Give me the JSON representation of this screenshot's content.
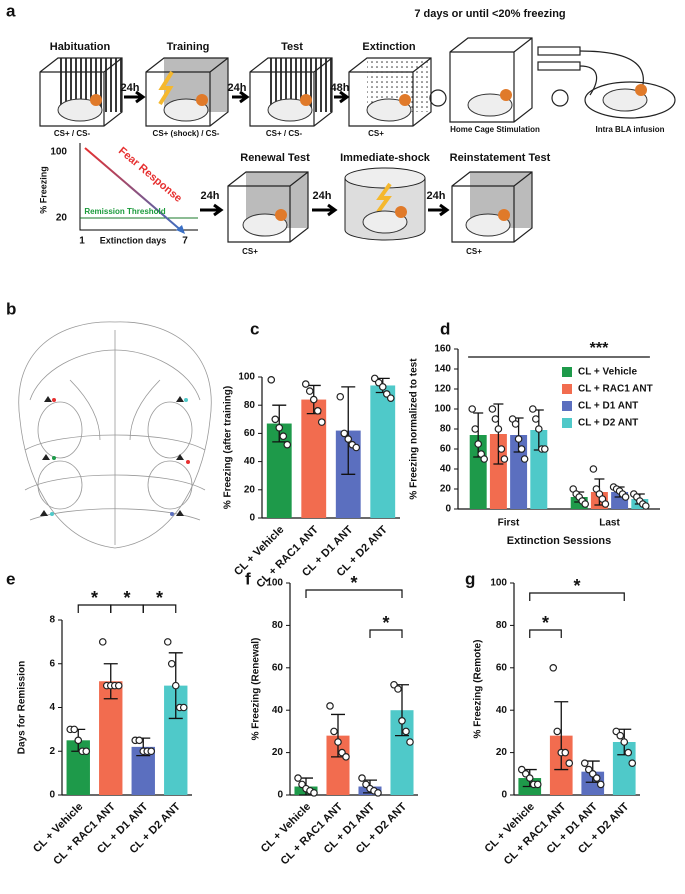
{
  "panel_a": {
    "label": "a",
    "stages": [
      "Habituation",
      "Training",
      "Test",
      "Extinction"
    ],
    "stage_notes": [
      "CS+ / CS-",
      "CS+ (shock) / CS-",
      "CS+ / CS-",
      "CS+"
    ],
    "delays": [
      "24h",
      "24h",
      "48h"
    ],
    "repeat_note": "7 days or until <20% freezing",
    "loop": [
      "Home Cage Stimulation",
      "Intra BLA infusion"
    ],
    "graph": {
      "y_label": "% Freezing",
      "y_top": "100",
      "y_threshold": "20",
      "x_start": "1",
      "x_end": "7",
      "x_label": "Extinction days",
      "line_label": "Fear Response",
      "threshold_label": "Remission Threshold"
    },
    "tests": [
      "Renewal Test",
      "Immediate-shock",
      "Reinstatement Test"
    ],
    "test_delays": [
      "24h",
      "24h",
      "24h"
    ],
    "test_notes": [
      "CS+",
      "CS+"
    ]
  },
  "panel_b": {
    "label": "b"
  },
  "chart_data": [
    {
      "type": "bar",
      "panel_label": "c",
      "y_label": "% Freezing (after training)",
      "categories": [
        "CL + Vehicle",
        "CL + RAC1 ANT",
        "CL + D1 ANT",
        "CL + D2 ANT"
      ],
      "colors": [
        "#1e9a4a",
        "#f26c4f",
        "#5b6fbf",
        "#4fc9c9"
      ],
      "values": [
        67,
        84,
        62,
        94
      ],
      "errors": [
        13,
        10,
        31,
        5
      ],
      "points": [
        [
          98,
          70,
          64,
          58,
          52
        ],
        [
          95,
          90,
          84,
          76,
          68
        ],
        [
          86,
          60,
          56,
          52,
          50
        ],
        [
          99,
          96,
          93,
          88,
          85
        ]
      ],
      "ylim": [
        0,
        100
      ],
      "yticks": [
        0,
        20,
        40,
        60,
        80,
        100
      ]
    },
    {
      "type": "bar",
      "panel_label": "d",
      "y_label": "% Freezing normalized to test",
      "x_label": "Extinction Sessions",
      "categories": [
        "First",
        "Last"
      ],
      "series": [
        {
          "name": "CL + Vehicle",
          "color": "#1e9a4a",
          "values": [
            74,
            12
          ],
          "errors": [
            22,
            5
          ],
          "points": [
            [
              100,
              80,
              65,
              55,
              50
            ],
            [
              20,
              15,
              12,
              8,
              5
            ]
          ]
        },
        {
          "name": "CL + RAC1 ANT",
          "color": "#f26c4f",
          "values": [
            75,
            17
          ],
          "errors": [
            30,
            13
          ],
          "points": [
            [
              100,
              90,
              80,
              60,
              50
            ],
            [
              40,
              20,
              15,
              10,
              5
            ]
          ]
        },
        {
          "name": "CL + D1 ANT",
          "color": "#5b6fbf",
          "values": [
            74,
            17
          ],
          "errors": [
            17,
            5
          ],
          "points": [
            [
              90,
              85,
              70,
              60,
              50
            ],
            [
              22,
              20,
              18,
              15,
              12
            ]
          ]
        },
        {
          "name": "CL + D2 ANT",
          "color": "#4fc9c9",
          "values": [
            79,
            10
          ],
          "errors": [
            20,
            5
          ],
          "points": [
            [
              100,
              90,
              80,
              60,
              60
            ],
            [
              15,
              12,
              8,
              5,
              3
            ]
          ]
        }
      ],
      "annotations": [
        {
          "text": "***"
        }
      ],
      "ylim": [
        0,
        160
      ],
      "yticks": [
        0,
        20,
        40,
        60,
        80,
        100,
        120,
        140,
        160
      ]
    },
    {
      "type": "bar",
      "panel_label": "e",
      "y_label": "Days for Remission",
      "categories": [
        "CL + Vehicle",
        "CL + RAC1 ANT",
        "CL + D1 ANT",
        "CL + D2 ANT"
      ],
      "colors": [
        "#1e9a4a",
        "#f26c4f",
        "#5b6fbf",
        "#4fc9c9"
      ],
      "values": [
        2.5,
        5.2,
        2.2,
        5
      ],
      "errors": [
        0.5,
        0.8,
        0.4,
        1.5
      ],
      "points": [
        [
          3,
          3,
          2.5,
          2,
          2
        ],
        [
          7,
          5,
          5,
          5,
          5
        ],
        [
          2.5,
          2.5,
          2,
          2,
          2
        ],
        [
          7,
          6,
          5,
          4,
          4
        ]
      ],
      "annotations": [
        {
          "text": "*"
        },
        {
          "text": "*"
        },
        {
          "text": "*"
        }
      ],
      "ylim": [
        0,
        8
      ],
      "yticks": [
        0,
        2,
        4,
        6,
        8
      ]
    },
    {
      "type": "bar",
      "panel_label": "f",
      "y_label": "% Freezing (Renewal)",
      "categories": [
        "CL + Vehicle",
        "CL + RAC1 ANT",
        "CL + D1 ANT",
        "CL + D2 ANT"
      ],
      "colors": [
        "#1e9a4a",
        "#f26c4f",
        "#5b6fbf",
        "#4fc9c9"
      ],
      "values": [
        4,
        28,
        4,
        40
      ],
      "errors": [
        4,
        10,
        3,
        12
      ],
      "points": [
        [
          8,
          5,
          3,
          2,
          1
        ],
        [
          42,
          30,
          25,
          20,
          18
        ],
        [
          8,
          5,
          3,
          2,
          1
        ],
        [
          52,
          50,
          35,
          30,
          25
        ]
      ],
      "annotations": [
        {
          "text": "*"
        },
        {
          "text": "*"
        }
      ],
      "ylim": [
        0,
        100
      ],
      "yticks": [
        0,
        20,
        40,
        60,
        80,
        100
      ]
    },
    {
      "type": "bar",
      "panel_label": "g",
      "y_label": "% Freezing (Remote)",
      "categories": [
        "CL + Vehicle",
        "CL + RAC1 ANT",
        "CL + D1 ANT",
        "CL + D2 ANT"
      ],
      "colors": [
        "#1e9a4a",
        "#f26c4f",
        "#5b6fbf",
        "#4fc9c9"
      ],
      "values": [
        8,
        28,
        11,
        25
      ],
      "errors": [
        4,
        16,
        5,
        6
      ],
      "points": [
        [
          12,
          10,
          8,
          5,
          5
        ],
        [
          60,
          30,
          20,
          20,
          15
        ],
        [
          15,
          12,
          10,
          8,
          5
        ],
        [
          30,
          28,
          25,
          20,
          15
        ]
      ],
      "annotations": [
        {
          "text": "*"
        },
        {
          "text": "*"
        }
      ],
      "ylim": [
        0,
        100
      ],
      "yticks": [
        0,
        20,
        40,
        60,
        80,
        100
      ]
    }
  ]
}
